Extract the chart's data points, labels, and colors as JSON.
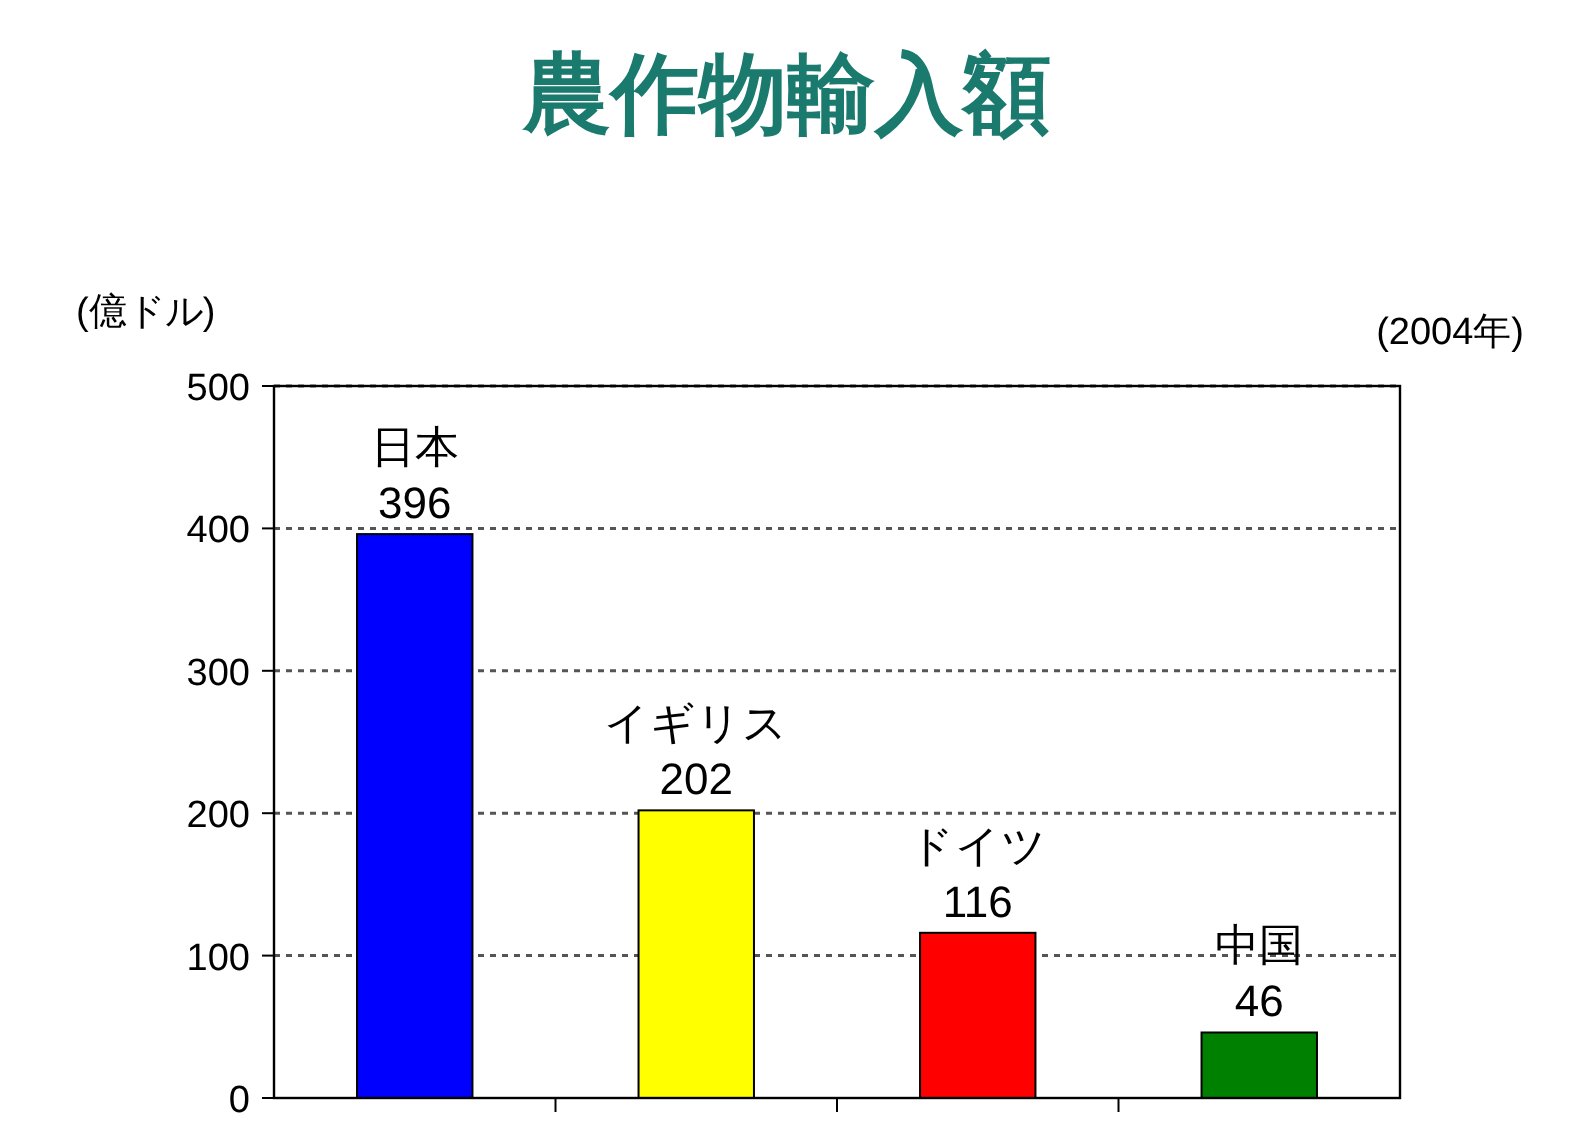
{
  "chart_data": {
    "type": "bar",
    "title": "農作物輸入額",
    "ylabel": "(億ドル)",
    "annotations": [
      "(2004年)"
    ],
    "categories": [
      "日本",
      "イギリス",
      "ドイツ",
      "中国"
    ],
    "values": [
      396,
      202,
      116,
      46
    ],
    "colors": [
      "#0000ff",
      "#ffff00",
      "#ff0000",
      "#008000"
    ],
    "ylim": [
      0,
      500
    ],
    "yticks": [
      0,
      100,
      200,
      300,
      400,
      500
    ],
    "grid": "y",
    "data_labels": true
  }
}
